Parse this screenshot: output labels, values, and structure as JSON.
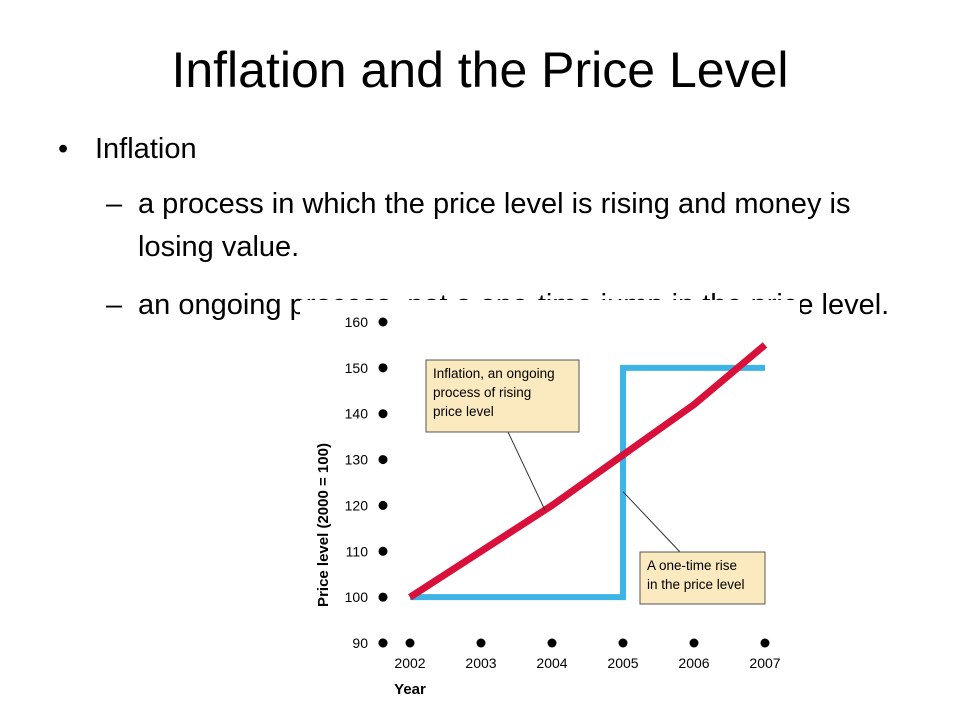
{
  "slide": {
    "title": "Inflation and the Price Level",
    "bullet": "Inflation",
    "bullet_marker": "•",
    "dash_marker": "–",
    "sub_items": [
      "a process in which the price level is rising and money is losing value.",
      "an ongoing process, not a one-time jump in the price level."
    ]
  },
  "colors": {
    "inflation_line": "#d9103a",
    "one_time_line": "#3cb4e6",
    "callout_fill": "#fbe9c0",
    "axis_text": "#000000"
  },
  "chart_data": {
    "type": "line",
    "xlabel": "Year",
    "ylabel": "Price level (2000 = 100)",
    "x_ticks": [
      2002,
      2003,
      2004,
      2005,
      2006,
      2007
    ],
    "y_ticks": [
      90,
      100,
      110,
      120,
      130,
      140,
      150,
      160
    ],
    "xlim": [
      2002,
      2007
    ],
    "ylim": [
      90,
      160
    ],
    "series": [
      {
        "key": "inflation",
        "points": [
          [
            2002,
            100
          ],
          [
            2003,
            110
          ],
          [
            2004,
            120
          ],
          [
            2005,
            131
          ],
          [
            2006,
            142
          ],
          [
            2007,
            155
          ]
        ]
      },
      {
        "key": "one_time",
        "points": [
          [
            2002,
            100
          ],
          [
            2005,
            100
          ],
          [
            2005,
            150
          ],
          [
            2007,
            150
          ]
        ]
      }
    ],
    "annotations": [
      {
        "lines": [
          "Inflation, an ongoing",
          "process of rising",
          "price level"
        ],
        "target": [
          2003.9,
          119
        ]
      },
      {
        "lines": [
          "A one-time rise",
          "in the price level"
        ],
        "target": [
          2005,
          123
        ]
      }
    ]
  }
}
